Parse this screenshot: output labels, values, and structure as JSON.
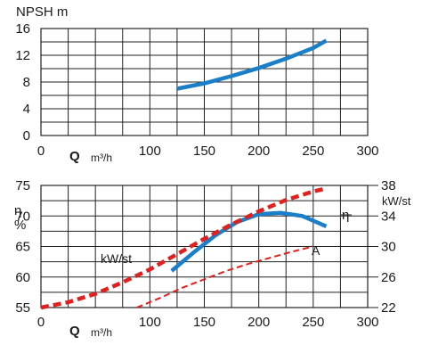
{
  "chart_data": [
    {
      "type": "line",
      "ylabel": "NPSH m",
      "xlabel_symbol": "Q",
      "xlabel_unit": "m³/h",
      "xlim": [
        0,
        300
      ],
      "ylim": [
        0,
        16
      ],
      "x_ticks": [
        0,
        100,
        150,
        200,
        250,
        300
      ],
      "y_ticks": [
        0,
        4,
        8,
        12,
        16
      ],
      "grid": true,
      "series": [
        {
          "color": "#1a7ec8",
          "style": "solid",
          "points": [
            [
              125,
              7.0
            ],
            [
              150,
              7.8
            ],
            [
              175,
              8.9
            ],
            [
              200,
              10.1
            ],
            [
              225,
              11.5
            ],
            [
              250,
              13.1
            ],
            [
              262,
              14.2
            ]
          ]
        }
      ]
    },
    {
      "type": "line",
      "xlabel_symbol": "Q",
      "xlabel_unit": "m³/h",
      "xlim": [
        0,
        300
      ],
      "x_ticks": [
        0,
        100,
        150,
        200,
        250,
        300
      ],
      "left_axis": {
        "label_top": "η",
        "label_bottom": "%",
        "ylim": [
          55,
          75
        ],
        "ticks": [
          55,
          60,
          65,
          70,
          75
        ]
      },
      "right_axis": {
        "label": "kW/st",
        "ylim": [
          22,
          38
        ],
        "ticks": [
          22,
          26,
          30,
          34,
          38
        ]
      },
      "grid": true,
      "series": [
        {
          "name": "η",
          "axis": "left",
          "color": "#1a7ec8",
          "style": "solid",
          "points": [
            [
              120,
              61.0
            ],
            [
              140,
              64.0
            ],
            [
              160,
              66.8
            ],
            [
              180,
              69.0
            ],
            [
              200,
              70.3
            ],
            [
              220,
              70.5
            ],
            [
              240,
              70.0
            ],
            [
              262,
              68.3
            ]
          ]
        },
        {
          "name": "kW/st",
          "axis": "right",
          "color": "#e0201e",
          "style": "dashed-thick",
          "points": [
            [
              0,
              22.0
            ],
            [
              25,
              22.7
            ],
            [
              50,
              23.8
            ],
            [
              75,
              25.3
            ],
            [
              100,
              27.0
            ],
            [
              125,
              29.0
            ],
            [
              150,
              31.0
            ],
            [
              175,
              32.9
            ],
            [
              200,
              34.6
            ],
            [
              225,
              36.1
            ],
            [
              250,
              37.2
            ],
            [
              262,
              37.6
            ]
          ]
        },
        {
          "name": "A",
          "axis": "right",
          "color": "#e0201e",
          "style": "dashed-thin",
          "points": [
            [
              88,
              22.0
            ],
            [
              110,
              23.3
            ],
            [
              130,
              24.6
            ],
            [
              150,
              25.7
            ],
            [
              170,
              26.8
            ],
            [
              190,
              27.7
            ],
            [
              210,
              28.5
            ],
            [
              230,
              29.3
            ],
            [
              250,
              30.0
            ]
          ]
        }
      ],
      "curve_labels": {
        "eta": "η",
        "kw": "kW/st",
        "a": "A"
      }
    }
  ]
}
